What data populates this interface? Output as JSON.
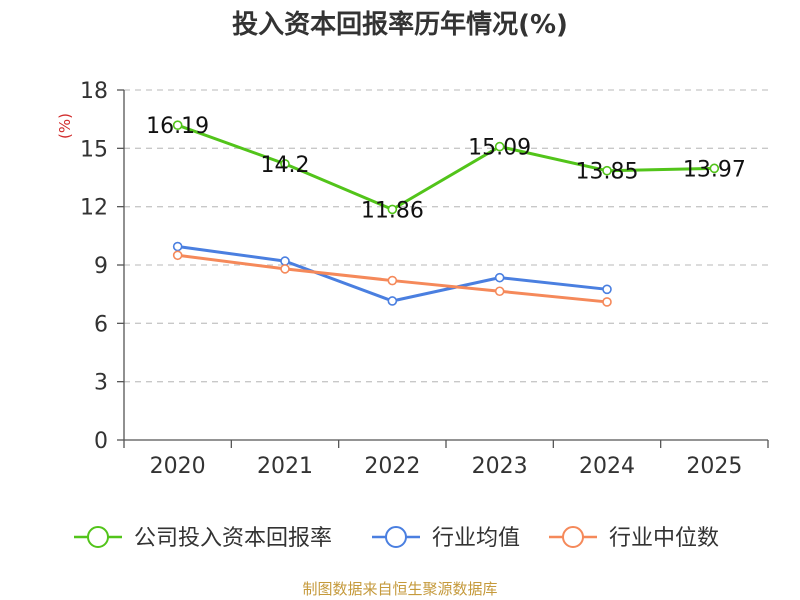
{
  "chart_data": {
    "type": "line",
    "title": "投入资本回报率历年情况(%)",
    "ylabel": "(%)",
    "xlabel": "",
    "categories": [
      "2020",
      "2021",
      "2022",
      "2023",
      "2024",
      "2025"
    ],
    "ylim": [
      0,
      18
    ],
    "yticks": [
      0,
      3,
      6,
      9,
      12,
      15,
      18
    ],
    "grid": true,
    "legend": "bottom",
    "series": [
      {
        "name": "公司投入资本回报率",
        "color": "#52c41a",
        "values": [
          16.19,
          14.2,
          11.86,
          15.09,
          13.85,
          13.97
        ],
        "labels": [
          "16.19",
          "14.2",
          "11.86",
          "15.09",
          "13.85",
          "13.97"
        ]
      },
      {
        "name": "行业均值",
        "color": "#4a7fe0",
        "values": [
          9.95,
          9.2,
          7.15,
          8.35,
          7.75,
          null
        ]
      },
      {
        "name": "行业中位数",
        "color": "#f5895a",
        "values": [
          9.5,
          8.8,
          8.2,
          7.65,
          7.1,
          null
        ]
      }
    ]
  },
  "source": "制图数据来自恒生聚源数据库"
}
